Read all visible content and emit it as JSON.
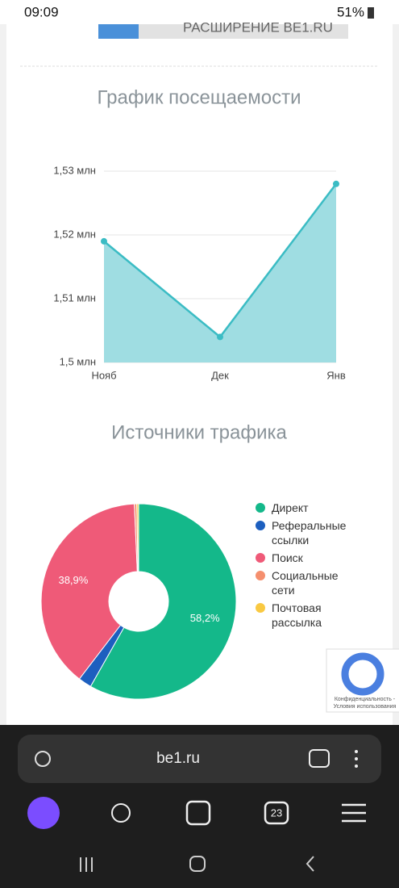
{
  "status_bar": {
    "time": "09:09",
    "battery": "51%"
  },
  "banner": {
    "text": "РАСШИРЕНИЕ BE1.RU"
  },
  "chart_data": [
    {
      "type": "line",
      "title": "График посещаемости",
      "categories": [
        "Нояб",
        "Дек",
        "Янв"
      ],
      "values": [
        1.519,
        1.504,
        1.528
      ],
      "color": "#3bbcc4",
      "area_color": "#9fdde2",
      "ylim": [
        1.5,
        1.53
      ],
      "yticks": [
        {
          "value": 1.5,
          "label": "1,5 млн"
        },
        {
          "value": 1.51,
          "label": "1,51 млн"
        },
        {
          "value": 1.52,
          "label": "1,52 млн"
        },
        {
          "value": 1.53,
          "label": "1,53 млн"
        }
      ],
      "grid": true
    },
    {
      "type": "pie",
      "title": "Источники трафика",
      "series": [
        {
          "name": "Директ",
          "color": "#14b88a"
        },
        {
          "name": "Реферальные ссылки",
          "color": "#1d5fbf"
        },
        {
          "name": "Поиск",
          "color": "#ef5a78"
        },
        {
          "name": "Социальные сети",
          "color": "#f58f6e"
        },
        {
          "name": "Почтовая рассылка",
          "color": "#f9c942"
        }
      ],
      "values": [
        58.2,
        2.2,
        38.9,
        0.4,
        0.3
      ],
      "value_labels": [
        "58,2%",
        null,
        "38,9%",
        null,
        null
      ],
      "legend": "right"
    }
  ],
  "recaptcha": {
    "text": "Конфиденциальность - Условия использования"
  },
  "browser": {
    "url": "be1.ru",
    "tabs": "23"
  }
}
